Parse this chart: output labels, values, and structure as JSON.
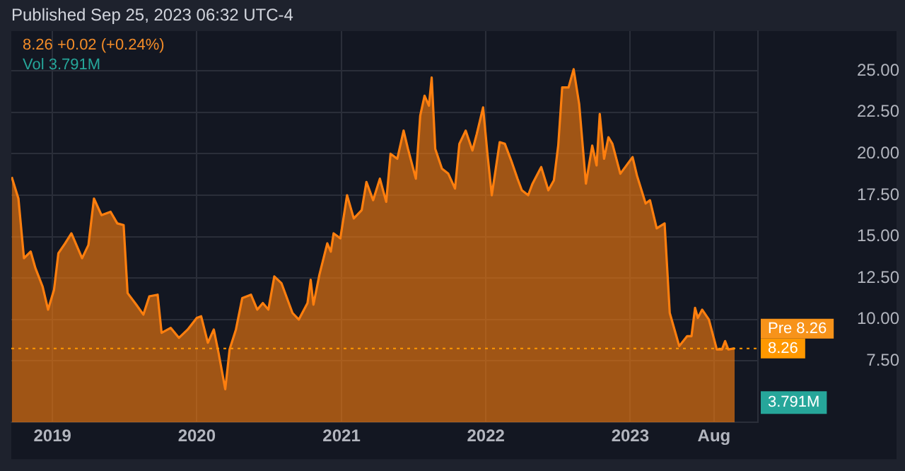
{
  "chart_data": {
    "type": "area",
    "title": "Published Sep 25, 2023 06:32 UTC-4",
    "x": [
      "2018-09-20",
      "2018-10-07",
      "2018-10-21",
      "2018-11-07",
      "2018-11-19",
      "2018-12-07",
      "2018-12-21",
      "2019-01-05",
      "2019-01-16",
      "2019-02-02",
      "2019-02-18",
      "2019-03-17",
      "2019-04-02",
      "2019-04-16",
      "2019-05-05",
      "2019-05-28",
      "2019-06-14",
      "2019-06-30",
      "2019-07-10",
      "2019-08-01",
      "2019-08-19",
      "2019-09-03",
      "2019-09-24",
      "2019-10-04",
      "2019-10-27",
      "2019-11-17",
      "2019-12-09",
      "2020-01-01",
      "2020-01-12",
      "2020-01-29",
      "2020-02-13",
      "2020-02-25",
      "2020-03-13",
      "2020-03-24",
      "2020-04-09",
      "2020-04-25",
      "2020-05-17",
      "2020-06-02",
      "2020-06-16",
      "2020-06-30",
      "2020-07-15",
      "2020-08-02",
      "2020-08-30",
      "2020-09-15",
      "2020-10-07",
      "2020-10-15",
      "2020-10-22",
      "2020-11-06",
      "2020-11-26",
      "2020-12-05",
      "2020-12-12",
      "2020-12-29",
      "2021-01-15",
      "2021-02-01",
      "2021-02-21",
      "2021-03-05",
      "2021-03-22",
      "2021-04-08",
      "2021-04-24",
      "2021-05-05",
      "2021-05-22",
      "2021-06-07",
      "2021-06-18",
      "2021-07-08",
      "2021-07-19",
      "2021-07-30",
      "2021-08-10",
      "2021-08-17",
      "2021-08-26",
      "2021-09-12",
      "2021-09-28",
      "2021-10-15",
      "2021-10-26",
      "2021-11-11",
      "2021-11-28",
      "2021-12-09",
      "2021-12-25",
      "2022-01-05",
      "2022-01-16",
      "2022-02-05",
      "2022-02-18",
      "2022-03-06",
      "2022-03-22",
      "2022-04-02",
      "2022-04-18",
      "2022-04-29",
      "2022-05-21",
      "2022-06-08",
      "2022-06-22",
      "2022-07-03",
      "2022-07-13",
      "2022-07-29",
      "2022-08-11",
      "2022-08-25",
      "2022-09-11",
      "2022-09-27",
      "2022-10-08",
      "2022-10-16",
      "2022-10-27",
      "2022-11-07",
      "2022-11-17",
      "2022-12-07",
      "2023-01-07",
      "2023-01-18",
      "2023-02-09",
      "2023-02-20",
      "2023-03-09",
      "2023-03-29",
      "2023-04-11",
      "2023-05-05",
      "2023-05-25",
      "2023-06-05",
      "2023-06-14",
      "2023-06-21",
      "2023-07-02",
      "2023-07-19",
      "2023-08-08",
      "2023-08-21",
      "2023-08-29",
      "2023-09-06",
      "2023-09-22"
    ],
    "series": [
      {
        "color": "#ff7f0e",
        "values": [
          18.6,
          17.3,
          13.7,
          14.1,
          13.1,
          12.0,
          10.6,
          11.8,
          14.0,
          14.6,
          15.2,
          13.7,
          14.5,
          17.3,
          16.3,
          16.5,
          15.8,
          15.7,
          11.6,
          10.9,
          10.3,
          11.4,
          11.5,
          9.2,
          9.5,
          8.9,
          9.4,
          10.1,
          10.2,
          8.6,
          9.4,
          8.0,
          5.8,
          8.2,
          9.4,
          11.3,
          11.5,
          10.6,
          11.0,
          10.6,
          12.6,
          12.2,
          10.4,
          10.0,
          11.0,
          12.4,
          10.9,
          12.7,
          14.6,
          14.1,
          15.2,
          14.9,
          17.5,
          16.1,
          16.6,
          18.3,
          17.2,
          18.5,
          17.1,
          20.0,
          19.7,
          21.4,
          20.3,
          18.5,
          22.3,
          23.5,
          22.9,
          24.6,
          20.3,
          19.1,
          18.8,
          17.9,
          20.6,
          21.4,
          20.2,
          21.2,
          22.8,
          20.0,
          17.5,
          20.7,
          20.6,
          19.6,
          18.5,
          17.8,
          17.5,
          18.2,
          19.2,
          17.8,
          18.4,
          20.5,
          24.0,
          24.0,
          25.1,
          23.0,
          18.2,
          20.5,
          19.3,
          22.4,
          19.7,
          21.0,
          20.6,
          18.8,
          19.8,
          18.7,
          17.0,
          17.2,
          15.5,
          15.8,
          10.4,
          8.4,
          9.0,
          9.0,
          10.7,
          10.1,
          10.6,
          10.0,
          8.2,
          8.2,
          8.7,
          8.2,
          8.26
        ]
      }
    ],
    "xlim": [
      "2018-09-19",
      "2023-11-20"
    ],
    "xticks": [
      {
        "value": "2019-01-01",
        "label": "2019"
      },
      {
        "value": "2020-01-01",
        "label": "2020"
      },
      {
        "value": "2021-01-01",
        "label": "2021"
      },
      {
        "value": "2022-01-01",
        "label": "2022"
      },
      {
        "value": "2023-01-01",
        "label": "2023"
      },
      {
        "value": "2023-08-01",
        "label": "Aug"
      }
    ],
    "ylim": [
      3.8,
      27.4
    ],
    "yticks": [
      {
        "value": 7.5,
        "label": "7.50"
      },
      {
        "value": 10,
        "label": "10.00"
      },
      {
        "value": 12.5,
        "label": "12.50"
      },
      {
        "value": 15,
        "label": "15.00"
      },
      {
        "value": 17.5,
        "label": "17.50"
      },
      {
        "value": 20,
        "label": "20.00"
      },
      {
        "value": 22.5,
        "label": "22.50"
      },
      {
        "value": 25,
        "label": "25.00"
      }
    ],
    "grid": true,
    "marker": "none",
    "line_style": "solid",
    "ref_lines": [
      {
        "axis": "y",
        "value": 8.26,
        "label": "8.26",
        "color": "#ff9800",
        "line_style": "dotted"
      }
    ],
    "annotations": [
      "8.26 +0.02 (+0.24%)",
      "Vol 3.791M",
      "Pre 8.26",
      "3.791M"
    ]
  }
}
